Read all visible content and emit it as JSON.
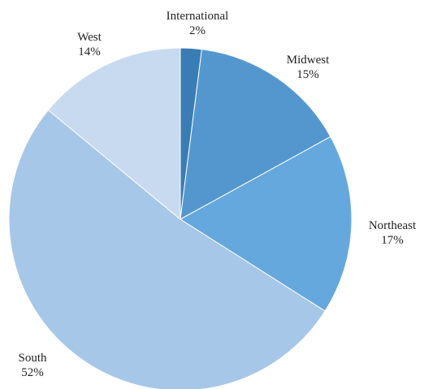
{
  "chart_data": {
    "type": "pie",
    "title": "",
    "start_angle_deg": 0,
    "direction": "clockwise",
    "slices": [
      {
        "label": "International",
        "value": 2,
        "value_label": "2%",
        "color": "#3A7DB5"
      },
      {
        "label": "Midwest",
        "value": 15,
        "value_label": "15%",
        "color": "#5497CF"
      },
      {
        "label": "Northeast",
        "value": 17,
        "value_label": "17%",
        "color": "#65A8DD"
      },
      {
        "label": "South",
        "value": 52,
        "value_label": "52%",
        "color": "#A7C7E8"
      },
      {
        "label": "West",
        "value": 14,
        "value_label": "14%",
        "color": "#C7DAEF"
      }
    ]
  }
}
